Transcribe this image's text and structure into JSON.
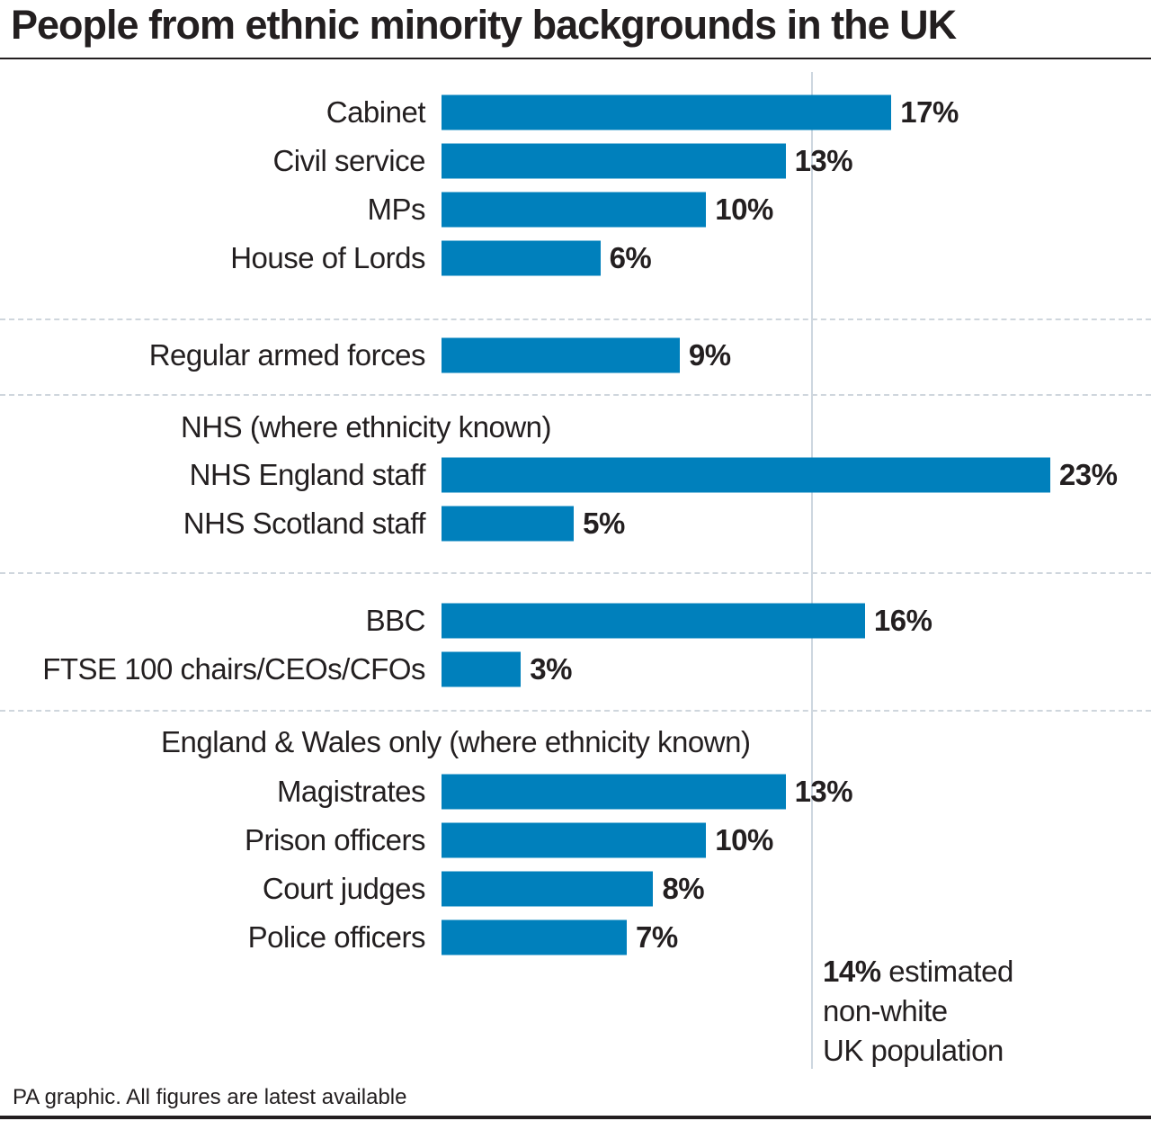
{
  "chart_data": {
    "type": "bar",
    "orientation": "horizontal",
    "title": "People from ethnic minority backgrounds in the UK",
    "unit": "%",
    "bar_color": "#0080bc",
    "reference_line": {
      "value": 14,
      "label_bold": "14%",
      "label_lines": [
        "estimated",
        "non-white",
        "UK population"
      ]
    },
    "groups": [
      {
        "header": "",
        "items": [
          {
            "label": "Cabinet",
            "value": 17,
            "value_label": "17%"
          },
          {
            "label": "Civil service",
            "value": 13,
            "value_label": "13%"
          },
          {
            "label": "MPs",
            "value": 10,
            "value_label": "10%"
          },
          {
            "label": "House of Lords",
            "value": 6,
            "value_label": "6%"
          }
        ]
      },
      {
        "header": "",
        "items": [
          {
            "label": "Regular armed forces",
            "value": 9,
            "value_label": "9%"
          }
        ]
      },
      {
        "header": "NHS (where ethnicity known)",
        "items": [
          {
            "label": "NHS England staff",
            "value": 23,
            "value_label": "23%"
          },
          {
            "label": "NHS Scotland staff",
            "value": 5,
            "value_label": "5%"
          }
        ]
      },
      {
        "header": "",
        "items": [
          {
            "label": "BBC",
            "value": 16,
            "value_label": "16%"
          },
          {
            "label": "FTSE 100 chairs/CEOs/CFOs",
            "value": 3,
            "value_label": "3%"
          }
        ]
      },
      {
        "header": "England & Wales only (where ethnicity known)",
        "items": [
          {
            "label": "Magistrates",
            "value": 13,
            "value_label": "13%"
          },
          {
            "label": "Prison officers",
            "value": 10,
            "value_label": "10%"
          },
          {
            "label": "Court judges",
            "value": 8,
            "value_label": "8%"
          },
          {
            "label": "Police officers",
            "value": 7,
            "value_label": "7%"
          }
        ]
      }
    ],
    "footer": "PA graphic. All figures are latest available"
  }
}
